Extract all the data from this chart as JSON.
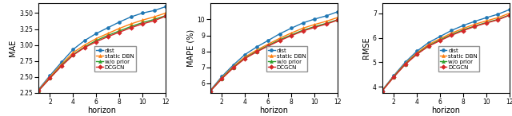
{
  "horizon": [
    1,
    2,
    3,
    4,
    5,
    6,
    7,
    8,
    9,
    10,
    11,
    12
  ],
  "mae": {
    "dist": [
      2.3,
      2.52,
      2.73,
      2.93,
      3.07,
      3.18,
      3.27,
      3.36,
      3.44,
      3.5,
      3.54,
      3.6
    ],
    "static_dbn": [
      2.29,
      2.5,
      2.7,
      2.88,
      3.0,
      3.1,
      3.18,
      3.26,
      3.33,
      3.39,
      3.44,
      3.5
    ],
    "wo_prior": [
      2.28,
      2.48,
      2.68,
      2.85,
      2.97,
      3.07,
      3.15,
      3.22,
      3.29,
      3.35,
      3.4,
      3.46
    ],
    "dcgcn": [
      2.28,
      2.48,
      2.67,
      2.84,
      2.96,
      3.05,
      3.13,
      3.2,
      3.27,
      3.33,
      3.38,
      3.45
    ]
  },
  "mape": {
    "dist": [
      5.55,
      6.42,
      7.15,
      7.8,
      8.27,
      8.68,
      9.1,
      9.45,
      9.78,
      10.02,
      10.22,
      10.48
    ],
    "static_dbn": [
      5.52,
      6.35,
      7.05,
      7.65,
      8.08,
      8.45,
      8.82,
      9.15,
      9.45,
      9.68,
      9.88,
      10.12
    ],
    "wo_prior": [
      5.5,
      6.3,
      7.0,
      7.58,
      8.0,
      8.37,
      8.72,
      9.03,
      9.32,
      9.55,
      9.75,
      9.98
    ],
    "dcgcn": [
      5.5,
      6.28,
      6.97,
      7.55,
      7.96,
      8.33,
      8.67,
      8.98,
      9.27,
      9.5,
      9.7,
      9.95
    ]
  },
  "rmse": {
    "dist": [
      3.85,
      4.45,
      5.0,
      5.45,
      5.8,
      6.05,
      6.3,
      6.5,
      6.67,
      6.82,
      6.96,
      7.15
    ],
    "static_dbn": [
      3.84,
      4.42,
      4.95,
      5.38,
      5.72,
      5.96,
      6.19,
      6.38,
      6.55,
      6.69,
      6.82,
      7.0
    ],
    "wo_prior": [
      3.83,
      4.4,
      4.92,
      5.34,
      5.67,
      5.91,
      6.13,
      6.32,
      6.48,
      6.62,
      6.75,
      6.93
    ],
    "dcgcn": [
      3.82,
      4.39,
      4.91,
      5.32,
      5.65,
      5.88,
      6.1,
      6.29,
      6.46,
      6.6,
      6.73,
      6.92
    ]
  },
  "colors": {
    "dist": "#1f77b4",
    "static_dbn": "#ff7f0e",
    "wo_prior": "#2ca02c",
    "dcgcn": "#d62728"
  },
  "markers": {
    "dist": "o",
    "static_dbn": "^",
    "wo_prior": "^",
    "dcgcn": "D"
  },
  "labels": {
    "dist": "dist",
    "static_dbn": "static DBN",
    "wo_prior": "w/o prior",
    "dcgcn": "DCGCN"
  },
  "ylim_mae": [
    2.25,
    3.65
  ],
  "ylim_mape": [
    5.4,
    11.0
  ],
  "ylim_rmse": [
    3.75,
    7.4
  ],
  "yticks_mae": [
    2.25,
    2.5,
    2.75,
    3.0,
    3.25,
    3.5
  ],
  "yticks_mape": [
    6,
    7,
    8,
    9,
    10
  ],
  "yticks_rmse": [
    4,
    5,
    6,
    7
  ],
  "xlabel": "horizon",
  "ylabel_mae": "MAE",
  "ylabel_mape": "MAPE (%)",
  "ylabel_rmse": "RMSE",
  "markersize": 2.8,
  "linewidth": 1.0,
  "legend_fontsize": 5.0,
  "tick_fontsize": 5.5,
  "label_fontsize": 7.0
}
